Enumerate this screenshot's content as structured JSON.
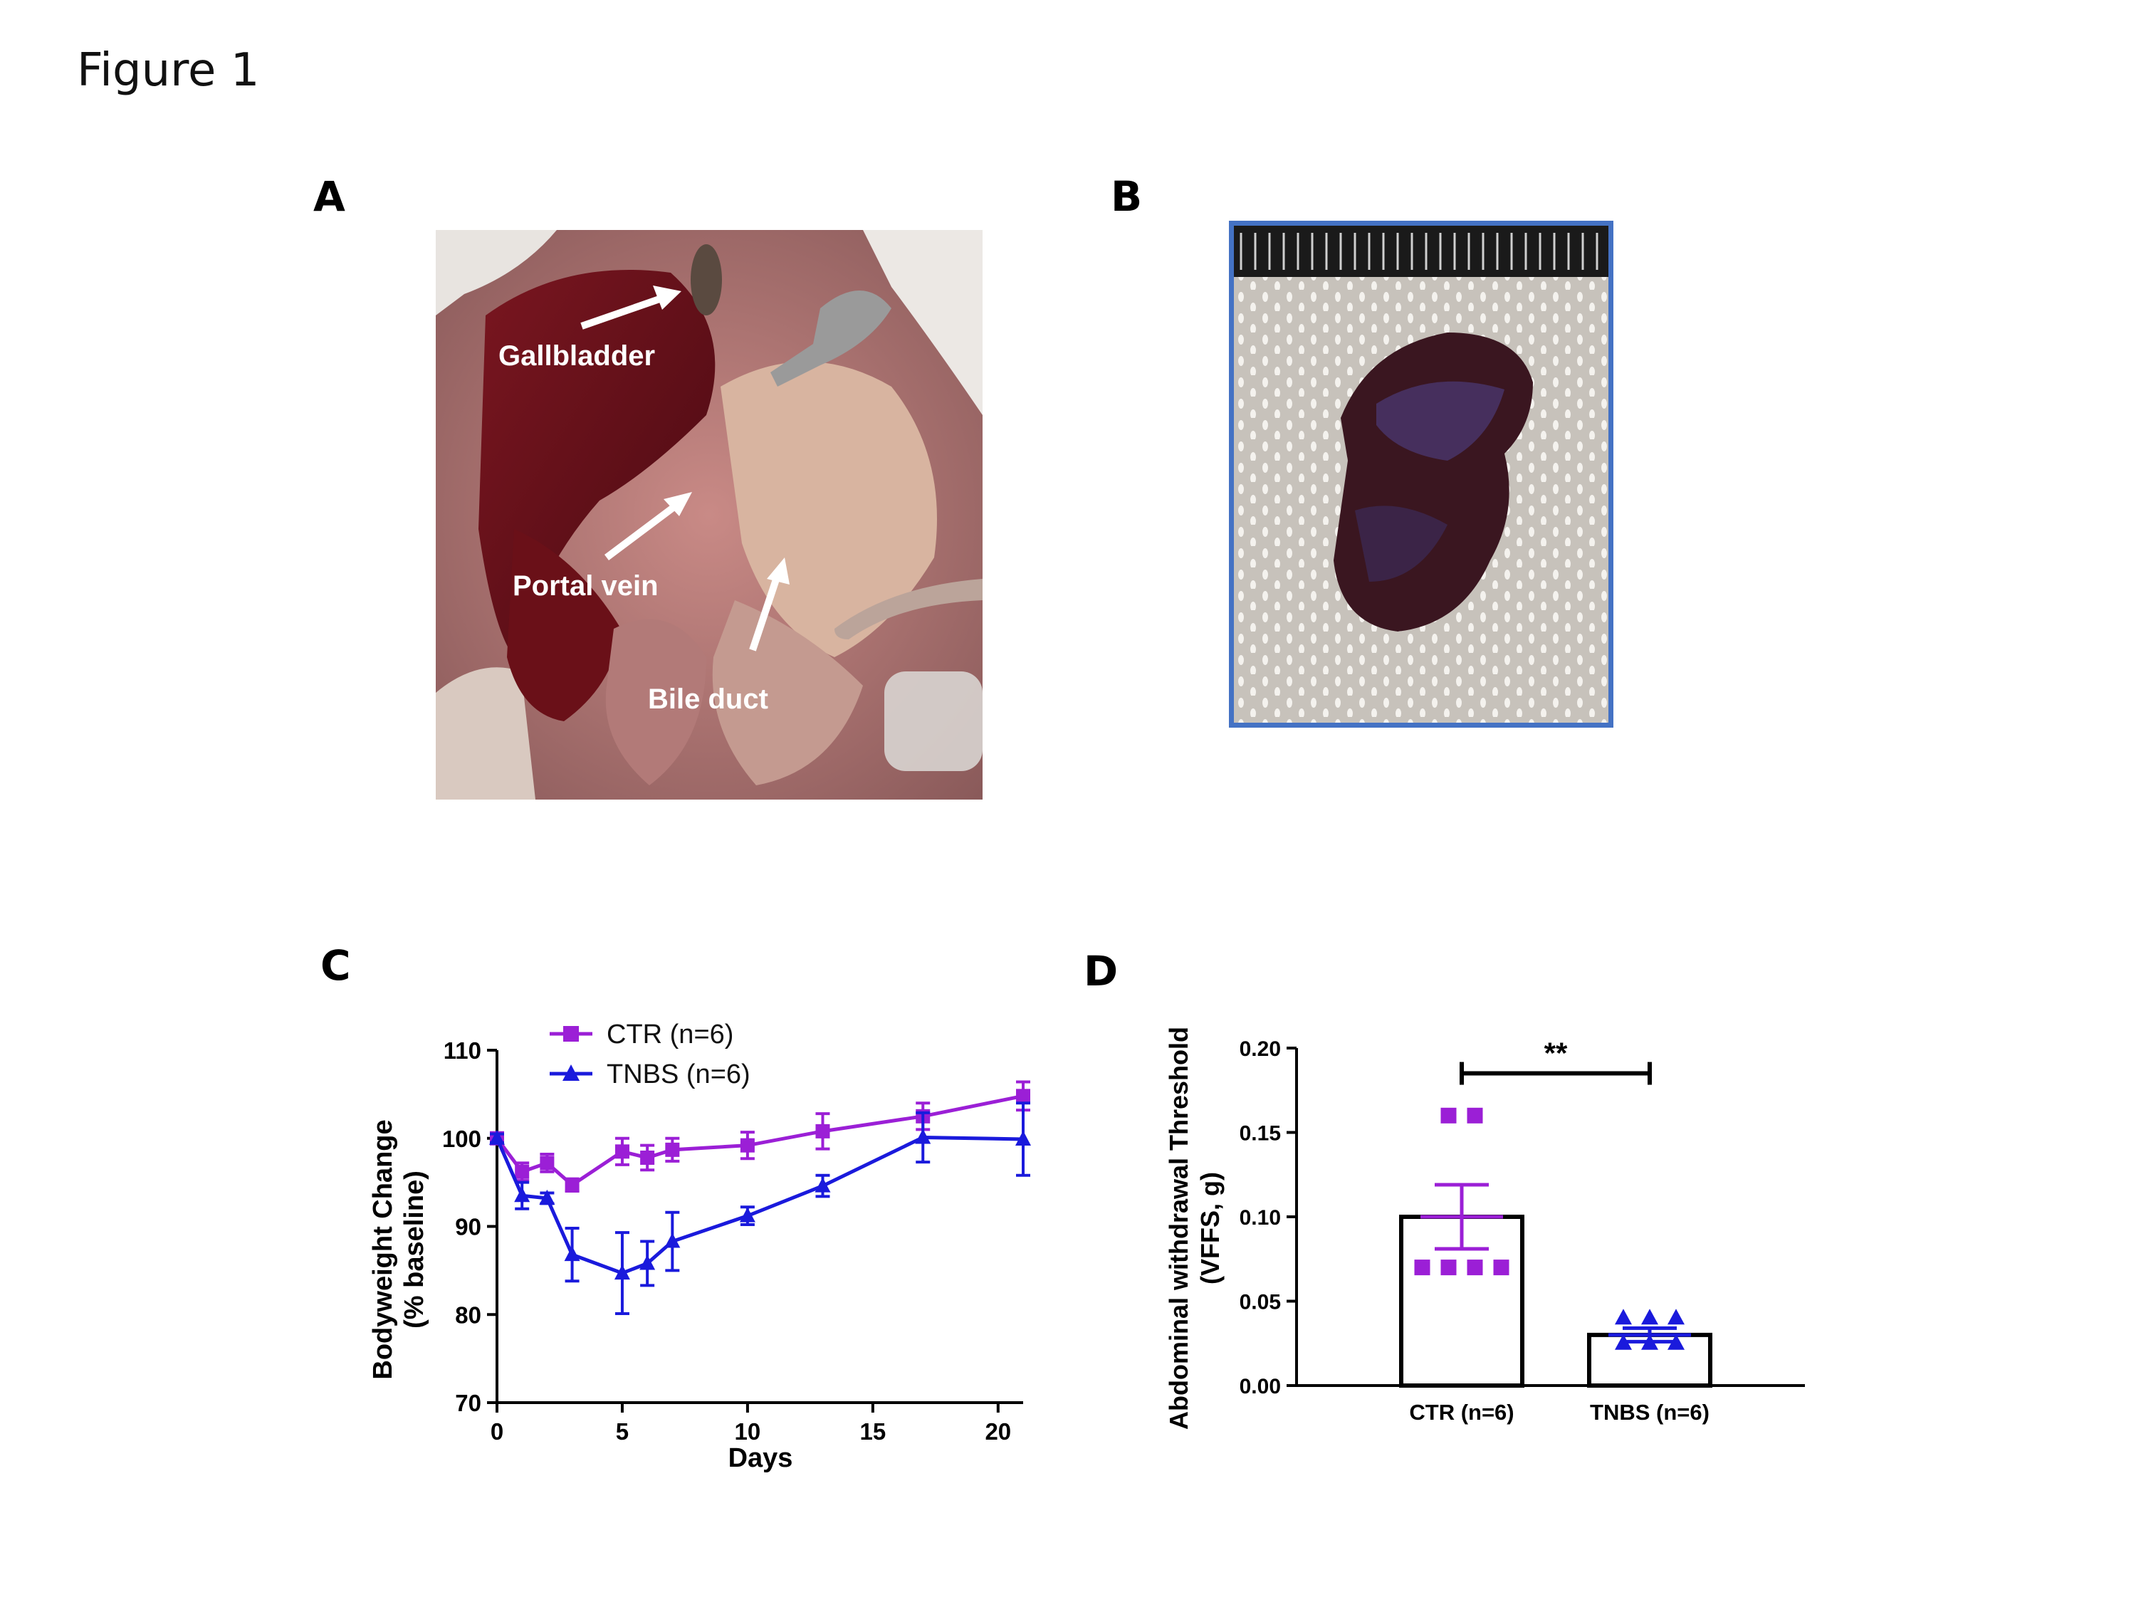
{
  "figure": {
    "title": "Figure 1"
  },
  "panels": {
    "a": {
      "letter": "A",
      "labels": {
        "gallbladder": "Gallbladder",
        "portal_vein": "Portal vein",
        "bile_duct": "Bile duct"
      }
    },
    "b": {
      "letter": "B",
      "border_color": "#4472c4"
    },
    "c": {
      "letter": "C"
    },
    "d": {
      "letter": "D"
    }
  },
  "chart_data": [
    {
      "type": "line",
      "xlabel": "Days",
      "ylabel": "Bodyweight Change",
      "ylabel2": "(% baseline)",
      "xlim": [
        0,
        21
      ],
      "ylim": [
        70,
        110
      ],
      "xticks": [
        0,
        5,
        10,
        15,
        20
      ],
      "yticks": [
        70,
        80,
        90,
        100,
        110
      ],
      "grid": false,
      "legend_position": "top-left",
      "series": [
        {
          "name": "CTR (n=6)",
          "color": "#9b1fd6",
          "marker": "square",
          "x": [
            0,
            1,
            2,
            3,
            5,
            6,
            7,
            10,
            13,
            17,
            21
          ],
          "y": [
            100,
            96.2,
            97.2,
            94.7,
            98.5,
            97.8,
            98.7,
            99.2,
            100.8,
            102.5,
            104.8
          ],
          "err": [
            0.6,
            1.0,
            1.0,
            0.7,
            1.5,
            1.4,
            1.3,
            1.5,
            2.0,
            1.5,
            1.6
          ]
        },
        {
          "name": "TNBS (n=6)",
          "color": "#1a1adc",
          "marker": "triangle",
          "x": [
            0,
            1,
            2,
            3,
            5,
            6,
            7,
            10,
            13,
            17,
            21
          ],
          "y": [
            100,
            93.5,
            93.2,
            86.8,
            84.7,
            85.8,
            88.3,
            91.2,
            94.6,
            100.1,
            99.9
          ],
          "err": [
            0.5,
            1.5,
            0.6,
            3.0,
            4.6,
            2.5,
            3.3,
            1.0,
            1.2,
            2.8,
            4.1
          ]
        }
      ]
    },
    {
      "type": "bar",
      "categories": [
        "CTR (n=6)",
        "TNBS (n=6)"
      ],
      "values": [
        0.1,
        0.03
      ],
      "errors": [
        0.019,
        0.004
      ],
      "colors": [
        "#9b1fd6",
        "#1a1adc"
      ],
      "ylabel": "Abdominal withdrawal Threshold",
      "ylabel2": "(VFFS, g)",
      "ylim": [
        0,
        0.2
      ],
      "yticks": [
        "0.00",
        "0.05",
        "0.10",
        "0.15",
        "0.20"
      ],
      "points": [
        [
          0.16,
          0.16,
          0.07,
          0.07,
          0.07,
          0.07
        ],
        [
          0.04,
          0.04,
          0.04,
          0.025,
          0.025,
          0.025
        ]
      ],
      "significance": "**"
    }
  ]
}
